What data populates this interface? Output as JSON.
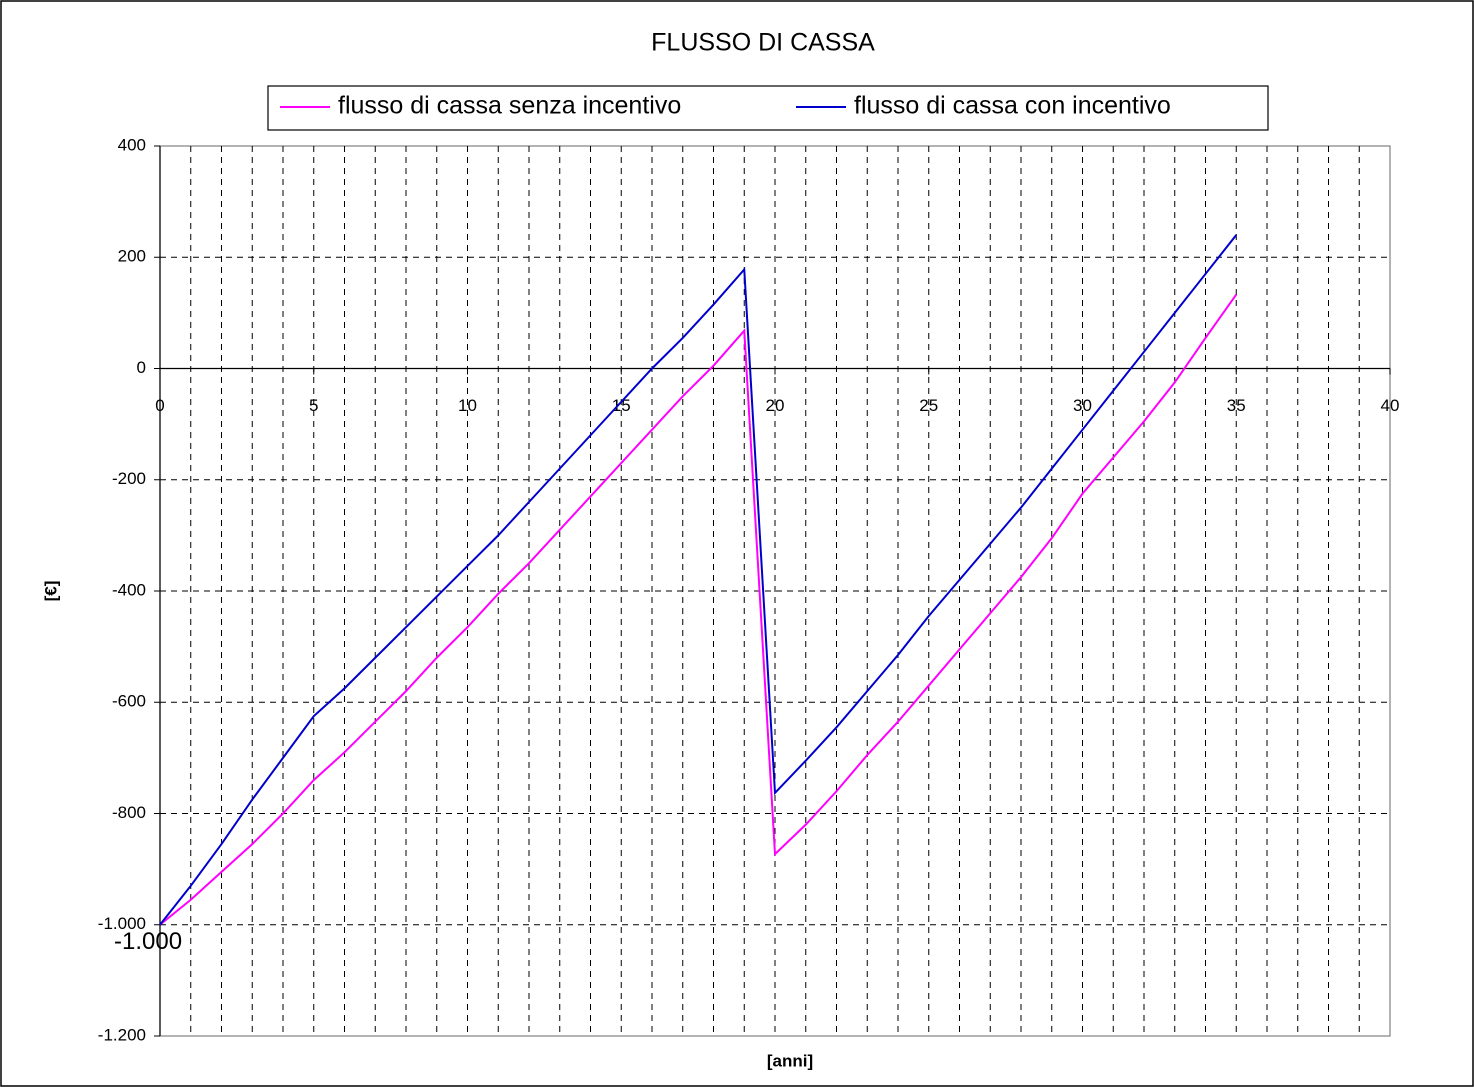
{
  "chart_data": {
    "type": "line",
    "title": "FLUSSO DI CASSA",
    "xlabel": "[anni]",
    "ylabel": "[€]",
    "x": [
      0,
      1,
      2,
      3,
      4,
      5,
      6,
      7,
      8,
      9,
      10,
      11,
      12,
      13,
      14,
      15,
      16,
      17,
      18,
      19,
      20,
      21,
      22,
      23,
      24,
      25,
      26,
      27,
      28,
      29,
      30,
      31,
      32,
      33,
      34,
      35
    ],
    "series": [
      {
        "name": "flusso di cassa senza incentivo",
        "color": "#ff00ff",
        "values": [
          -1000,
          -955,
          -905,
          -855,
          -800,
          -740,
          -690,
          -635,
          -580,
          -520,
          -465,
          -405,
          -350,
          -290,
          -230,
          -170,
          -110,
          -50,
          5,
          68,
          -873,
          -820,
          -760,
          -695,
          -635,
          -570,
          -505,
          -440,
          -375,
          -305,
          -225,
          -160,
          -95,
          -25,
          55,
          133
        ],
        "value_labels": [
          "-1.000",
          null,
          null,
          null,
          null,
          null,
          null,
          null,
          null,
          null,
          null,
          null,
          null,
          null,
          null,
          null,
          null,
          null,
          null,
          null,
          null,
          null,
          null,
          null,
          null,
          null,
          null,
          null,
          null,
          null,
          null,
          null,
          null,
          null,
          null,
          null
        ]
      },
      {
        "name": "flusso di cassa con incentivo",
        "color": "#0000cc",
        "values": [
          -1000,
          -930,
          -855,
          -775,
          -700,
          -625,
          -575,
          -520,
          -465,
          -410,
          -355,
          -300,
          -240,
          -180,
          -120,
          -60,
          0,
          55,
          115,
          178,
          -763,
          -705,
          -645,
          -580,
          -515,
          -445,
          -380,
          -315,
          -250,
          -180,
          -110,
          -40,
          30,
          100,
          170,
          240
        ]
      }
    ],
    "xlim": [
      0,
      40
    ],
    "xticks": [
      0,
      5,
      10,
      15,
      20,
      25,
      30,
      35,
      40
    ],
    "xgrid_step": 1,
    "ylim": [
      -1200,
      400
    ],
    "yticks": [
      400,
      200,
      0,
      -200,
      -400,
      -600,
      -800,
      {
        "value": -1000,
        "label": "-1.000"
      },
      {
        "value": -1200,
        "label": "-1.200"
      }
    ],
    "grid": true,
    "legend": "top"
  }
}
